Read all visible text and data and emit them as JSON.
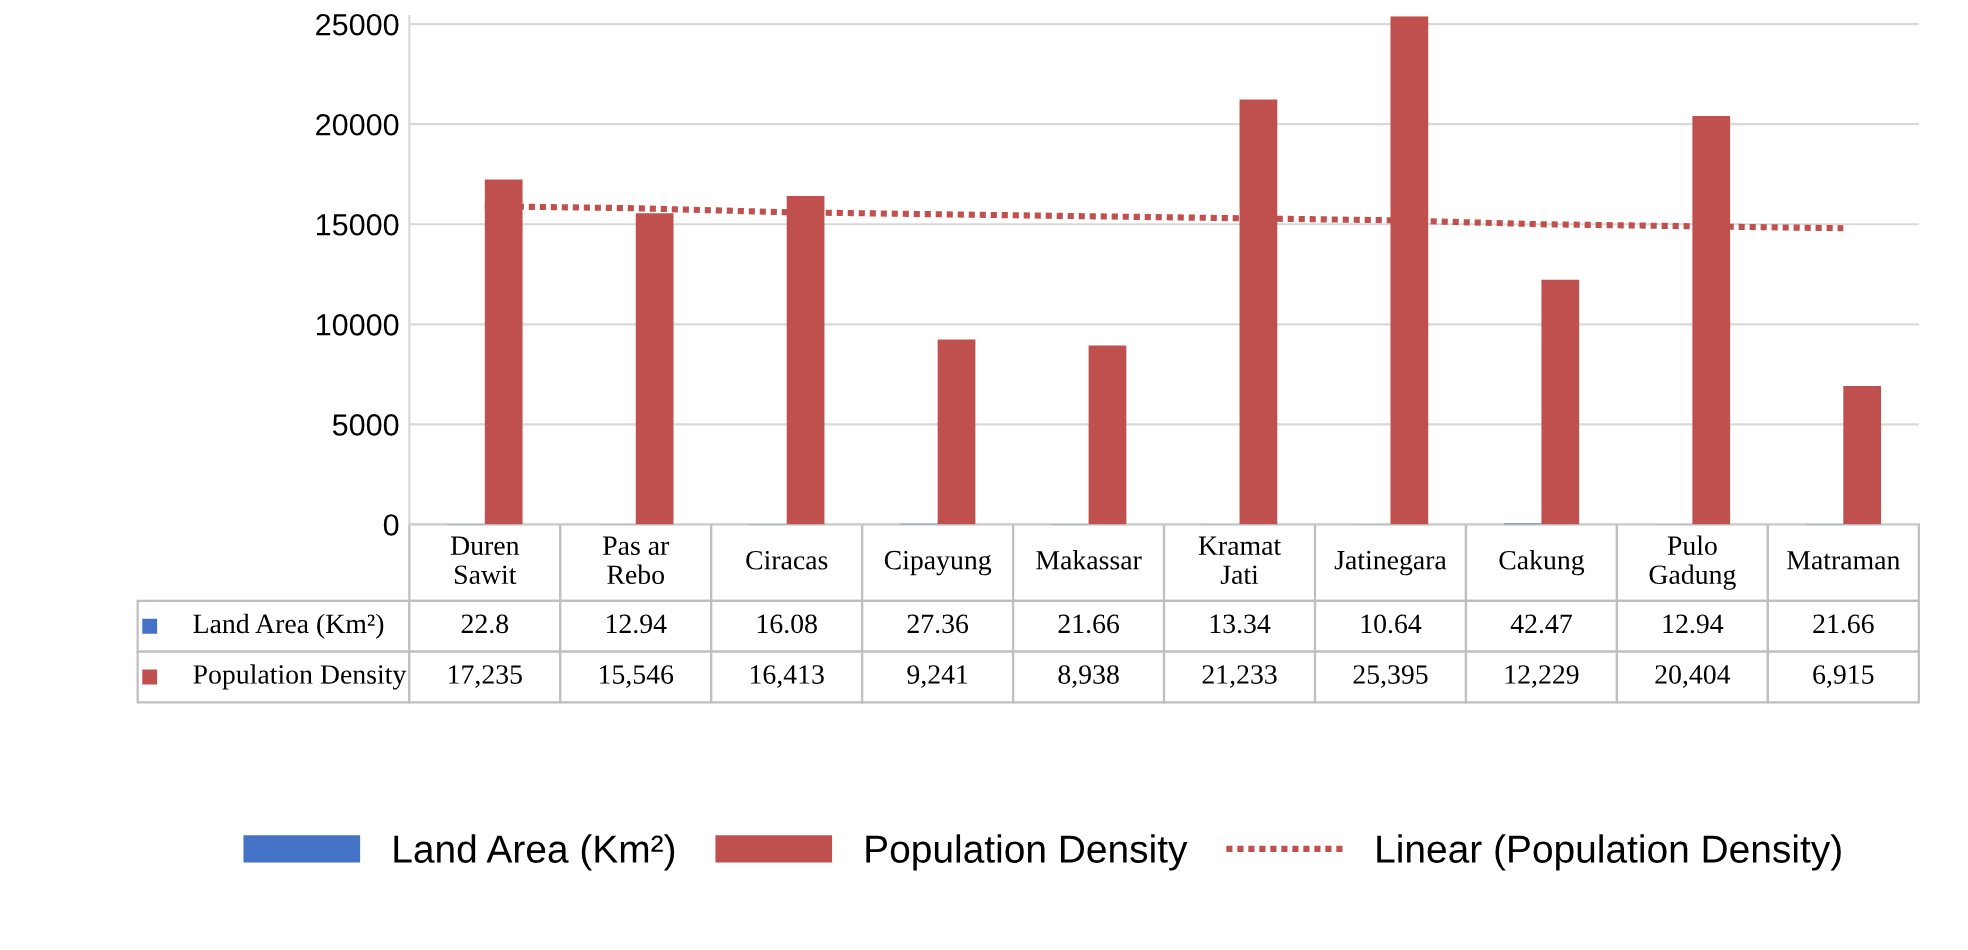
{
  "chart_data": {
    "type": "bar",
    "categories": [
      "Duren\nSawit",
      "Pas ar\nRebo",
      "Ciracas",
      "Cipayung",
      "Makassar",
      "Kramat\nJati",
      "Jatinegara",
      "Cakung",
      "Pulo\nGadung",
      "Matraman"
    ],
    "series": [
      {
        "name": "Land Area (Km²)",
        "color": "#4472c4",
        "values": [
          22.8,
          12.94,
          16.08,
          27.36,
          21.66,
          13.34,
          10.64,
          42.47,
          12.94,
          21.66
        ],
        "value_labels": [
          "22.8",
          "12.94",
          "16.08",
          "27.36",
          "21.66",
          "13.34",
          "10.64",
          "42.47",
          "12.94",
          "21.66"
        ]
      },
      {
        "name": "Population Density",
        "color": "#c0504d",
        "values": [
          17235,
          15546,
          16413,
          9241,
          8938,
          21233,
          25395,
          12229,
          20404,
          6915
        ],
        "value_labels": [
          "17,235",
          "15,546",
          "16,413",
          "9,241",
          "8,938",
          "21,233",
          "25,395",
          "12,229",
          "20,404",
          "6,915"
        ]
      },
      {
        "name": "Linear (Population Density)",
        "type": "line",
        "line_style": "dotted",
        "color": "#c0504d",
        "values": [
          15900,
          15800,
          15600,
          15500,
          15400,
          15300,
          15200,
          15000,
          14900,
          14800
        ]
      }
    ],
    "ylim": [
      0,
      25400
    ],
    "yticks": [
      0,
      5000,
      10000,
      15000,
      20000,
      25000
    ],
    "grid": "y",
    "legend": "bottom"
  }
}
